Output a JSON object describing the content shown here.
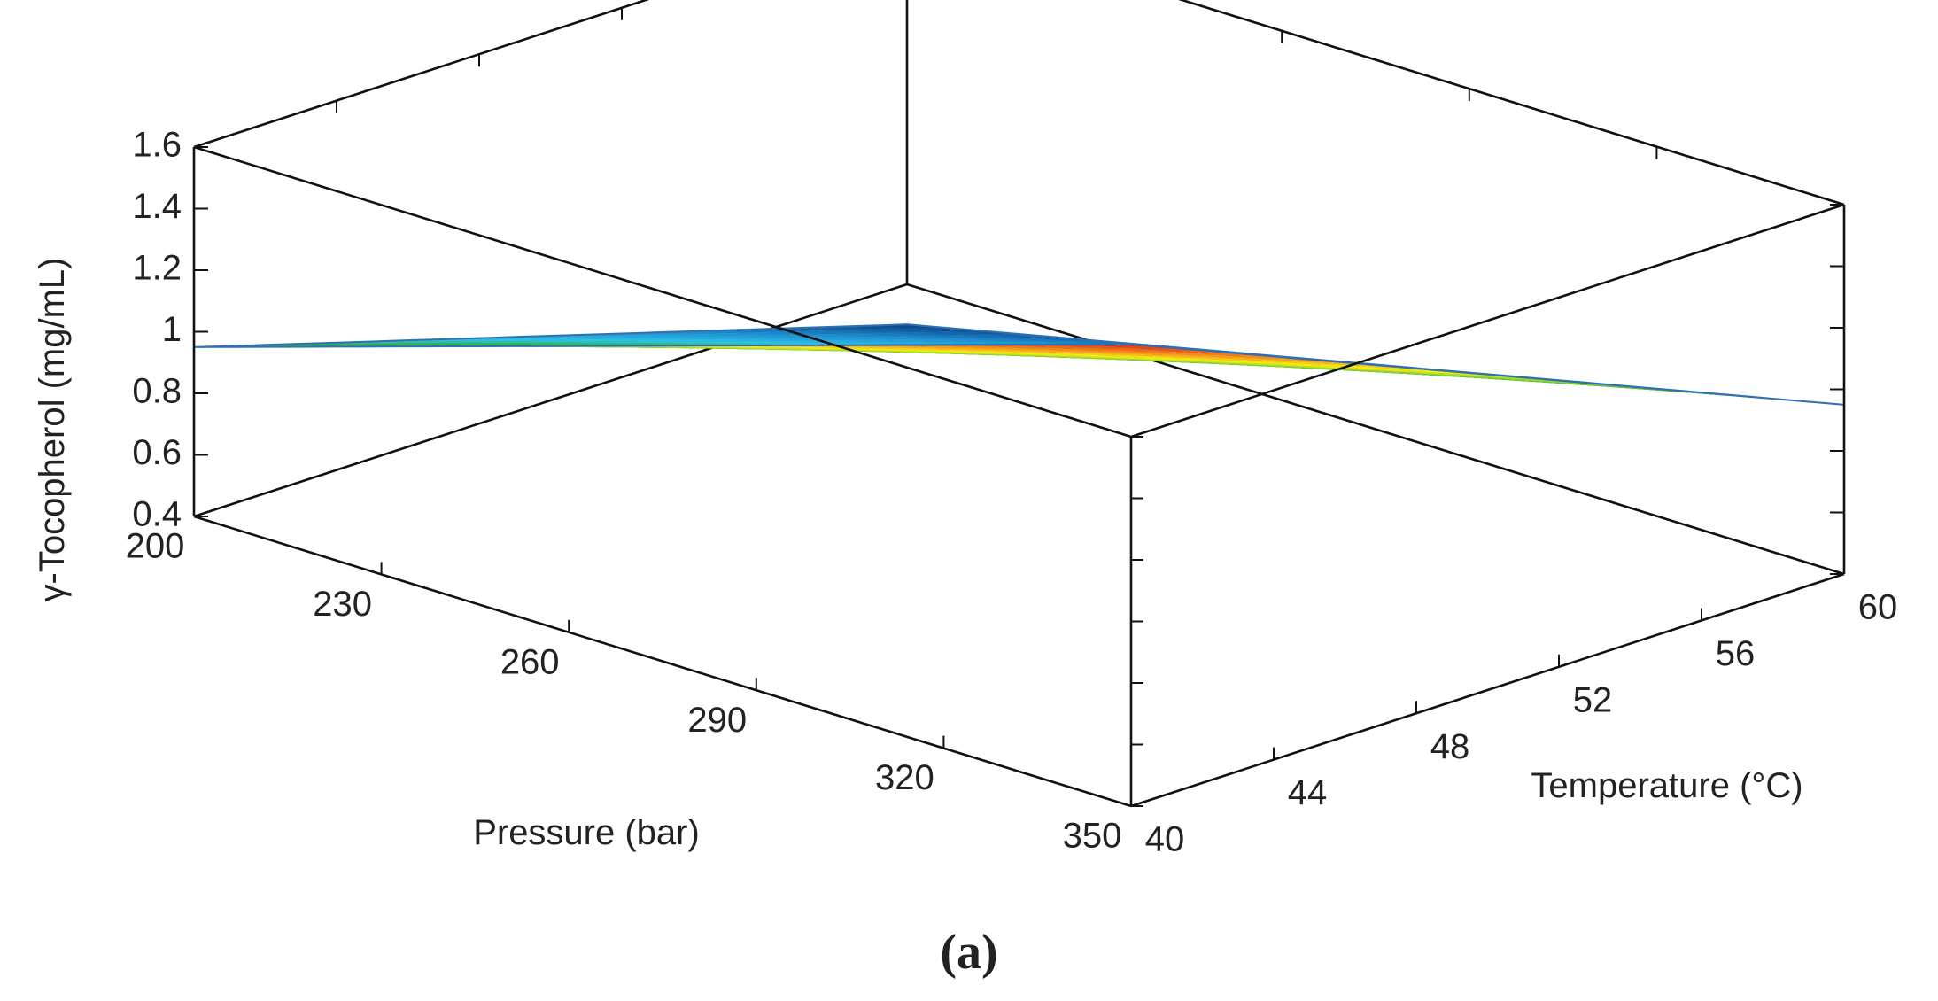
{
  "chart_data": {
    "type": "surface3d",
    "title": "",
    "x_axis": {
      "label": "Pressure (bar)",
      "range": [
        200,
        350
      ],
      "ticks": [
        200,
        230,
        260,
        290,
        320,
        350
      ]
    },
    "y_axis": {
      "label": "Temperature (°C)",
      "range": [
        40,
        60
      ],
      "ticks": [
        40,
        44,
        48,
        52,
        56,
        60
      ]
    },
    "z_axis": {
      "label": "γ-Tocopherol (mg/mL)",
      "range": [
        0.4,
        1.6
      ],
      "ticks": [
        "0.4",
        "0.6",
        "0.8",
        "1",
        "1.2",
        "1.4",
        "1.6"
      ]
    },
    "surface": {
      "x": [
        200,
        350
      ],
      "y": [
        40,
        60
      ],
      "z": [
        [
          0.95,
          0.27
        ],
        [
          1.9,
          0.95
        ]
      ],
      "z_rows_note": "z[i][j] at x[i], y[j]"
    },
    "colorscale": [
      "#0d3f86",
      "#1f8fcf",
      "#2ec3e8",
      "#2fae3c",
      "#7dcf2a",
      "#f6ee16",
      "#f28a1f",
      "#d6271a"
    ],
    "grid": false,
    "panel_label": "(a)"
  }
}
